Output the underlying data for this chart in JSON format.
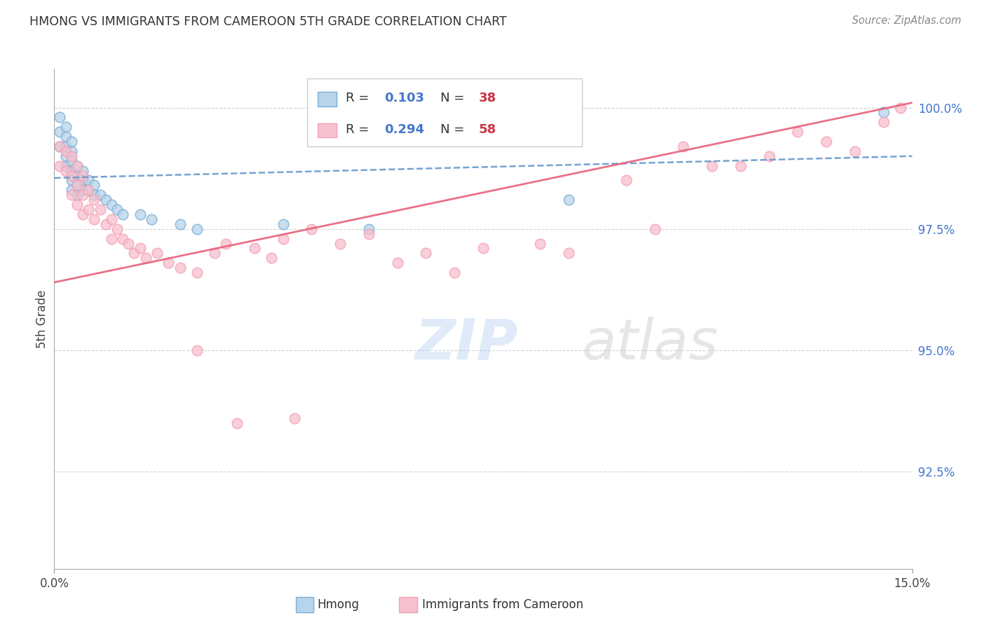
{
  "title": "HMONG VS IMMIGRANTS FROM CAMEROON 5TH GRADE CORRELATION CHART",
  "source": "Source: ZipAtlas.com",
  "ylabel": "5th Grade",
  "xlim": [
    0.0,
    0.15
  ],
  "ylim": [
    90.5,
    100.8
  ],
  "yticks_right": [
    100.0,
    97.5,
    95.0,
    92.5
  ],
  "ytick_labels_right": [
    "100.0%",
    "97.5%",
    "95.0%",
    "92.5%"
  ],
  "background_color": "#ffffff",
  "grid_color": "#c8c8d0",
  "hmong_color": "#7bafd4",
  "cameroon_color": "#f4a0b5",
  "watermark": "ZIPatlas",
  "hmong_x": [
    0.001,
    0.001,
    0.001,
    0.002,
    0.002,
    0.002,
    0.002,
    0.002,
    0.003,
    0.003,
    0.003,
    0.003,
    0.003,
    0.003,
    0.004,
    0.004,
    0.004,
    0.004,
    0.005,
    0.005,
    0.005,
    0.006,
    0.006,
    0.007,
    0.007,
    0.008,
    0.009,
    0.01,
    0.011,
    0.012,
    0.015,
    0.017,
    0.022,
    0.025,
    0.04,
    0.055,
    0.09,
    0.145
  ],
  "hmong_y": [
    99.8,
    99.5,
    99.2,
    99.6,
    99.4,
    99.2,
    99.0,
    98.8,
    99.3,
    99.1,
    98.9,
    98.7,
    98.5,
    98.3,
    98.8,
    98.6,
    98.4,
    98.2,
    98.7,
    98.5,
    98.3,
    98.5,
    98.3,
    98.4,
    98.2,
    98.2,
    98.1,
    98.0,
    97.9,
    97.8,
    97.8,
    97.7,
    97.6,
    97.5,
    97.6,
    97.5,
    98.1,
    99.9
  ],
  "cameroon_x": [
    0.001,
    0.001,
    0.002,
    0.002,
    0.003,
    0.003,
    0.003,
    0.004,
    0.004,
    0.004,
    0.005,
    0.005,
    0.005,
    0.006,
    0.006,
    0.007,
    0.007,
    0.008,
    0.009,
    0.01,
    0.01,
    0.011,
    0.012,
    0.013,
    0.014,
    0.015,
    0.016,
    0.018,
    0.02,
    0.022,
    0.025,
    0.028,
    0.03,
    0.035,
    0.038,
    0.04,
    0.045,
    0.05,
    0.055,
    0.06,
    0.065,
    0.07,
    0.075,
    0.085,
    0.09,
    0.1,
    0.105,
    0.11,
    0.115,
    0.12,
    0.125,
    0.13,
    0.135,
    0.14,
    0.145,
    0.148,
    0.025,
    0.032,
    0.042
  ],
  "cameroon_y": [
    99.2,
    98.8,
    99.1,
    98.7,
    99.0,
    98.6,
    98.2,
    98.8,
    98.4,
    98.0,
    98.6,
    98.2,
    97.8,
    98.3,
    97.9,
    98.1,
    97.7,
    97.9,
    97.6,
    97.7,
    97.3,
    97.5,
    97.3,
    97.2,
    97.0,
    97.1,
    96.9,
    97.0,
    96.8,
    96.7,
    96.6,
    97.0,
    97.2,
    97.1,
    96.9,
    97.3,
    97.5,
    97.2,
    97.4,
    96.8,
    97.0,
    96.6,
    97.1,
    97.2,
    97.0,
    98.5,
    97.5,
    99.2,
    98.8,
    98.8,
    99.0,
    99.5,
    99.3,
    99.1,
    99.7,
    100.0,
    95.0,
    93.5,
    93.6
  ],
  "hmong_trendline_x": [
    0.0,
    0.15
  ],
  "hmong_trendline_y": [
    98.55,
    99.0
  ],
  "cameroon_trendline_x": [
    0.0,
    0.15
  ],
  "cameroon_trendline_y": [
    96.4,
    100.1
  ]
}
